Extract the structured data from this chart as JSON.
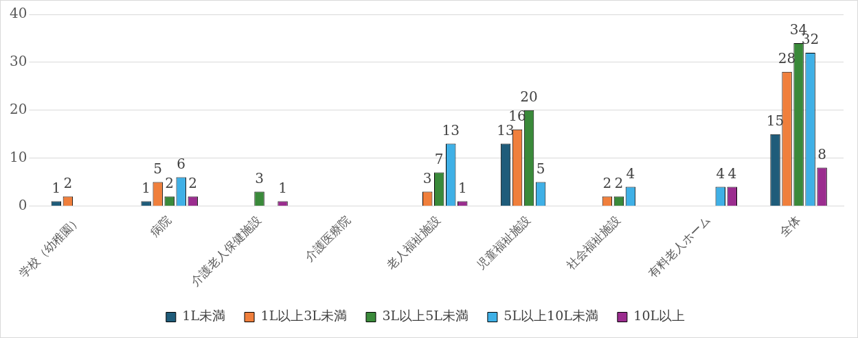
{
  "chart_data": {
    "type": "bar",
    "categories": [
      "学校（幼稚園）",
      "病院",
      "介護老人保健施設",
      "介護医療院",
      "老人福祉施設",
      "児童福祉施設",
      "社会福祉施設",
      "有料老人ホーム",
      "全体"
    ],
    "series": [
      {
        "name": "1L未満",
        "color": "#1f5c7a",
        "values": [
          1,
          1,
          null,
          null,
          null,
          13,
          null,
          null,
          15
        ]
      },
      {
        "name": "1L以上3L未満",
        "color": "#f07f3c",
        "values": [
          2,
          5,
          null,
          null,
          3,
          16,
          2,
          null,
          28
        ]
      },
      {
        "name": "3L以上5L未満",
        "color": "#3a8a3a",
        "values": [
          null,
          2,
          3,
          null,
          7,
          20,
          2,
          null,
          34
        ]
      },
      {
        "name": "5L以上10L未満",
        "color": "#3fb0e6",
        "values": [
          null,
          6,
          null,
          null,
          13,
          5,
          4,
          4,
          32
        ]
      },
      {
        "name": "10L以上",
        "color": "#9b2d8f",
        "values": [
          null,
          2,
          1,
          null,
          1,
          null,
          null,
          4,
          8
        ]
      }
    ],
    "ylim": [
      0,
      40
    ],
    "yticks": [
      0,
      10,
      20,
      30,
      40
    ],
    "grid": "y",
    "legend": "bottom",
    "data_labels": true
  }
}
